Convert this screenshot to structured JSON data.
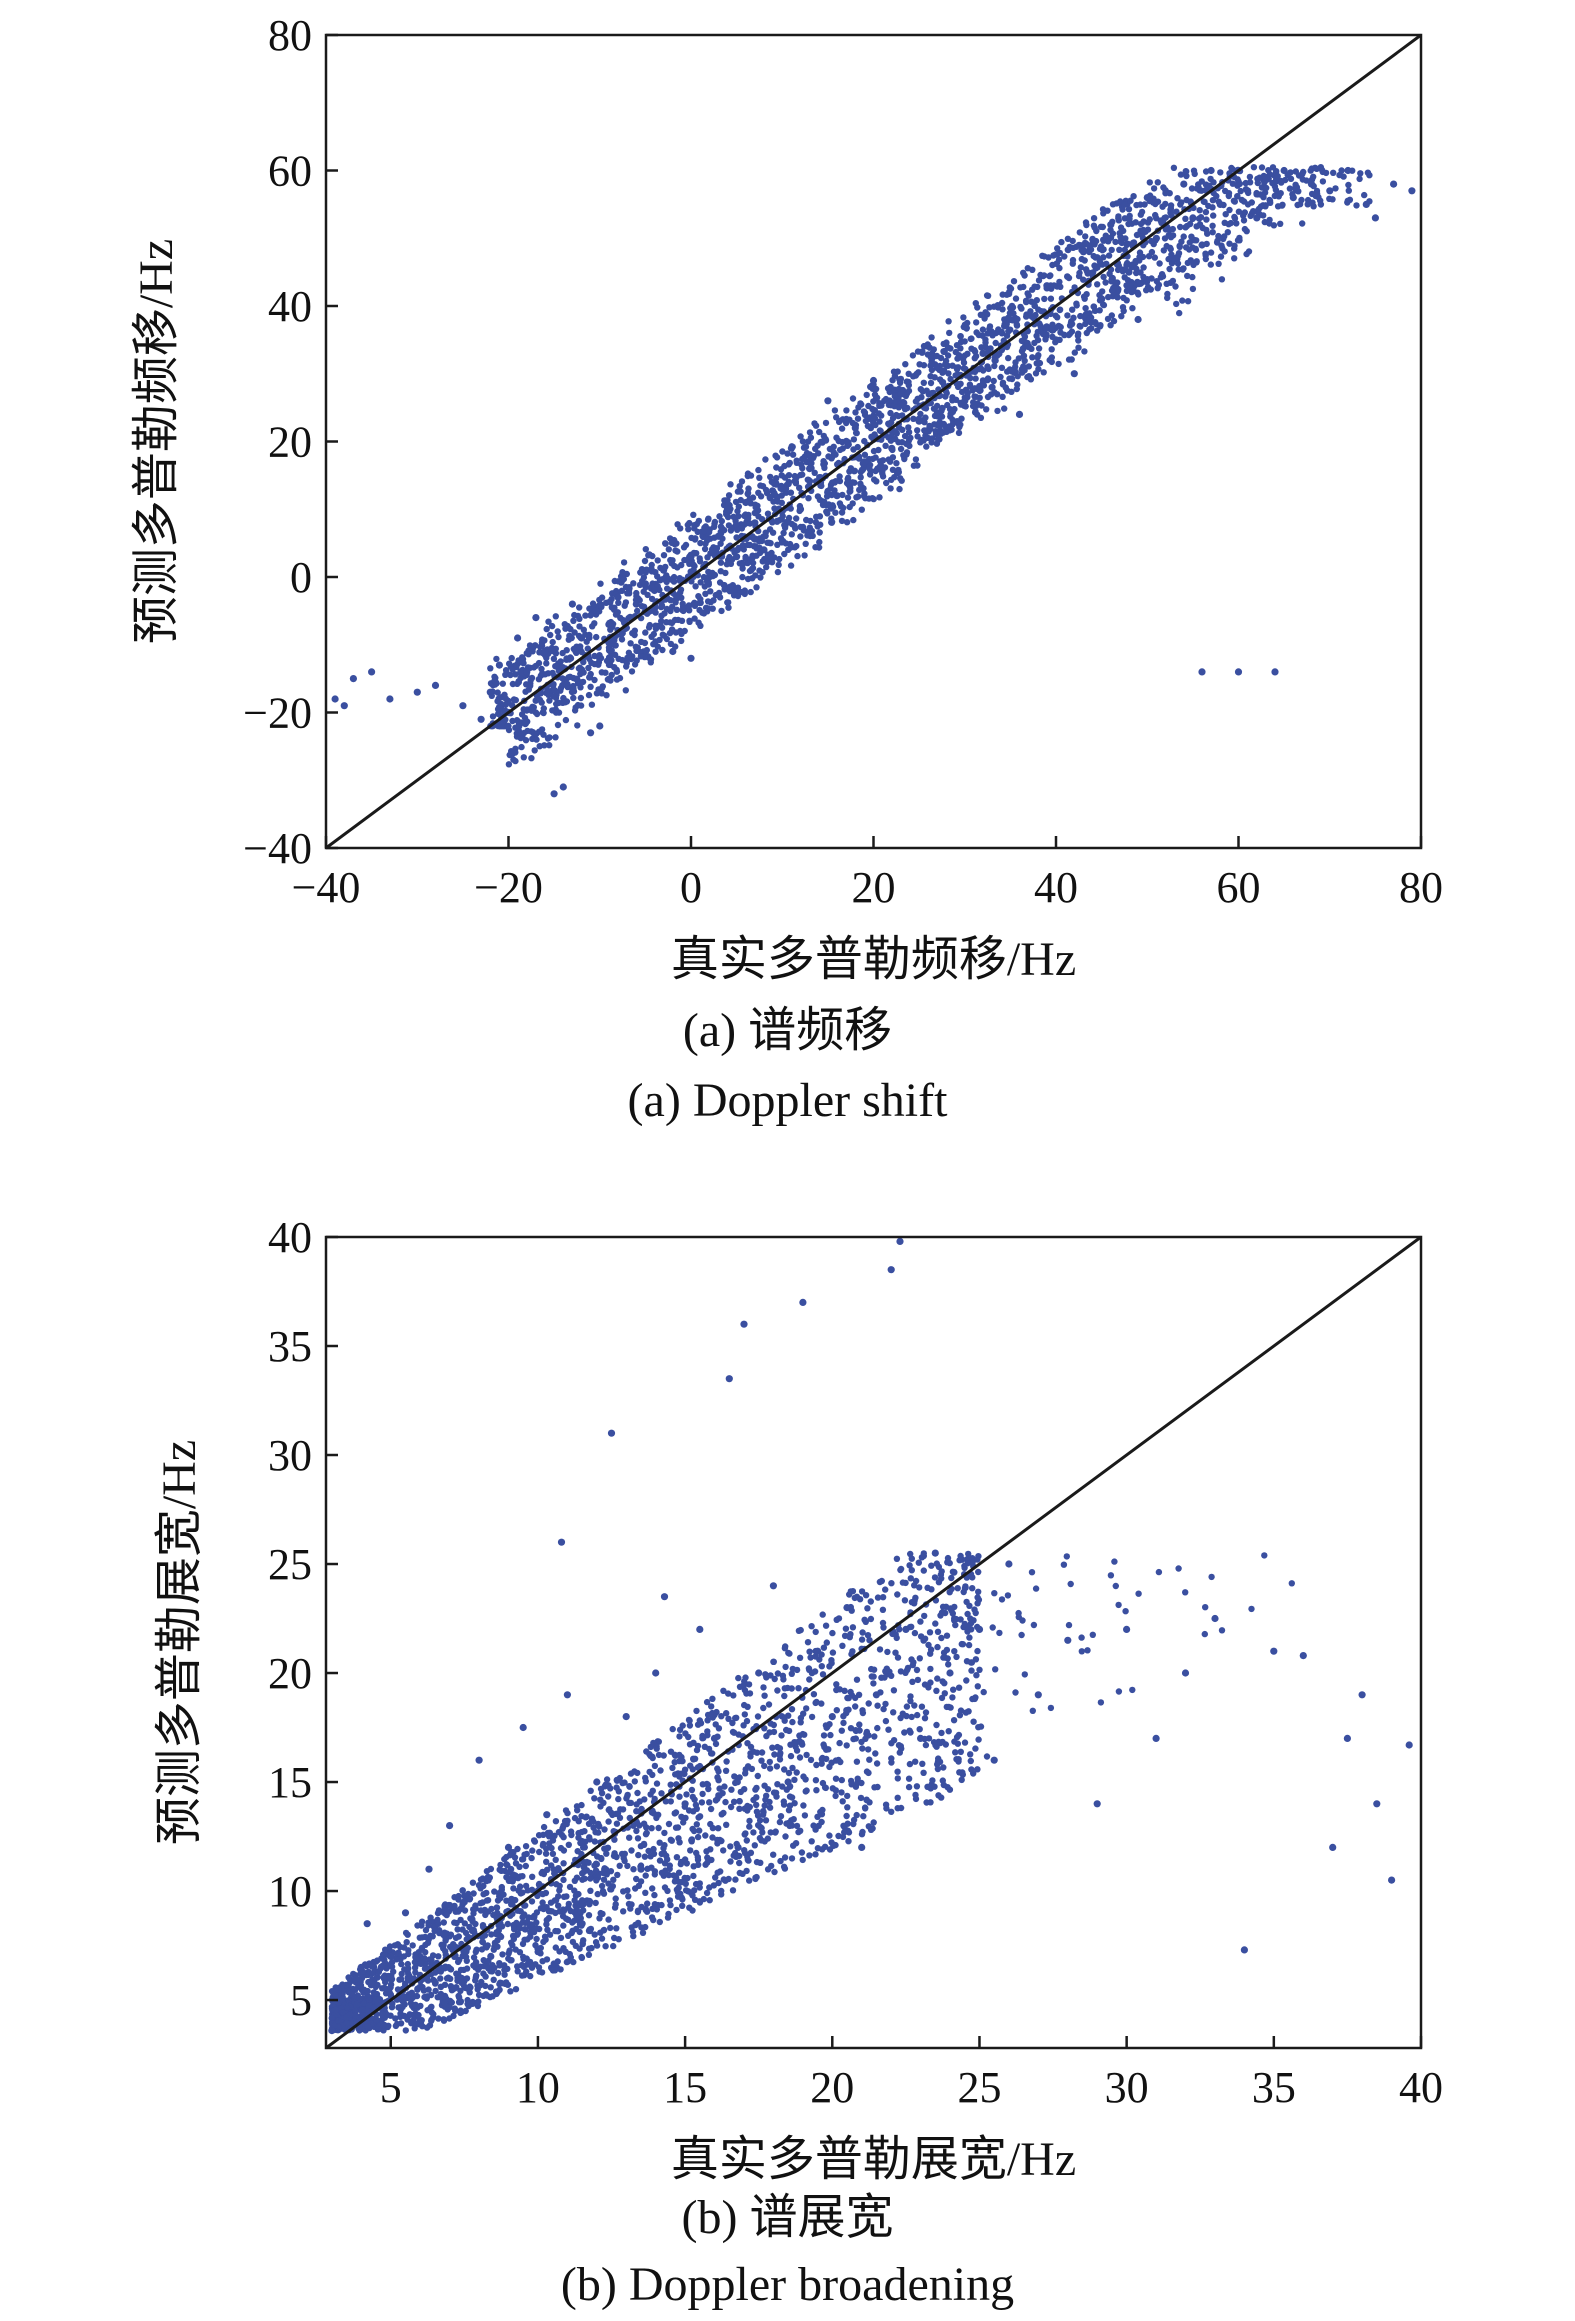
{
  "chart_data": [
    {
      "type": "scatter",
      "caption_cn": "(a) 谱频移",
      "caption_en": "(a) Doppler shift",
      "xlabel": "真实多普勒频移/Hz",
      "ylabel": "预测多普勒频移/Hz",
      "xlim": [
        -40,
        80
      ],
      "ylim": [
        -40,
        80
      ],
      "xticks": [
        "−40",
        "−20",
        "0",
        "20",
        "40",
        "60",
        "80"
      ],
      "yticks": [
        "−40",
        "−20",
        "0",
        "20",
        "40",
        "60",
        "80"
      ],
      "xtick_values": [
        -40,
        -20,
        0,
        20,
        40,
        60,
        80
      ],
      "ytick_values": [
        -40,
        -20,
        0,
        20,
        40,
        60,
        80
      ],
      "reference_line": {
        "from": [
          -40,
          -40
        ],
        "to": [
          80,
          80
        ],
        "color": "#1a1a1a"
      },
      "point_color": "#3a4fa0",
      "grid": false,
      "series": [
        {
          "points": [
            [
              -39,
              -18
            ],
            [
              -38,
              -19
            ],
            [
              -37,
              -15
            ],
            [
              -35,
              -14
            ],
            [
              -33,
              -18
            ],
            [
              -30,
              -17
            ],
            [
              -28,
              -16
            ],
            [
              -25,
              -19
            ],
            [
              -23,
              -21
            ],
            [
              -22,
              -17
            ],
            [
              -21,
              -13
            ],
            [
              -20,
              -20
            ],
            [
              -19,
              -9
            ],
            [
              -18,
              -14
            ],
            [
              -17,
              -6
            ],
            [
              -16,
              -11
            ],
            [
              -15,
              -32
            ],
            [
              -14,
              -31
            ],
            [
              -13,
              -4
            ],
            [
              -12,
              -9
            ],
            [
              -11,
              -23
            ],
            [
              -10,
              -22
            ],
            [
              -9,
              -7
            ],
            [
              -8,
              -3
            ],
            [
              -6,
              -4
            ],
            [
              -5,
              -1
            ],
            [
              -4,
              -2
            ],
            [
              -3,
              1
            ],
            [
              -2,
              -11
            ],
            [
              0,
              -12
            ],
            [
              0,
              3
            ],
            [
              2,
              0
            ],
            [
              3,
              6
            ],
            [
              4,
              10
            ],
            [
              5,
              3
            ],
            [
              6,
              11
            ],
            [
              7,
              8
            ],
            [
              8,
              4
            ],
            [
              10,
              13
            ],
            [
              11,
              19
            ],
            [
              12,
              10
            ],
            [
              13,
              16
            ],
            [
              15,
              26
            ],
            [
              16,
              12
            ],
            [
              18,
              22
            ],
            [
              19,
              17
            ],
            [
              20,
              29
            ],
            [
              22,
              19
            ],
            [
              23,
              27
            ],
            [
              25,
              23
            ],
            [
              27,
              31
            ],
            [
              28,
              22
            ],
            [
              30,
              26
            ],
            [
              32,
              33
            ],
            [
              33,
              28
            ],
            [
              35,
              38
            ],
            [
              36,
              24
            ],
            [
              37,
              34
            ],
            [
              39,
              43
            ],
            [
              40,
              35
            ],
            [
              42,
              30
            ],
            [
              43,
              48
            ],
            [
              45,
              41
            ],
            [
              46,
              52
            ],
            [
              48,
              45
            ],
            [
              49,
              38
            ],
            [
              50,
              56
            ],
            [
              51,
              50
            ],
            [
              53,
              47
            ],
            [
              54,
              58
            ],
            [
              55,
              53
            ],
            [
              56,
              49
            ],
            [
              57,
              60
            ],
            [
              58,
              55
            ],
            [
              60,
              60
            ],
            [
              61,
              57
            ],
            [
              62,
              53
            ],
            [
              63,
              59
            ],
            [
              65,
              60
            ],
            [
              66,
              56
            ],
            [
              68,
              58
            ],
            [
              70,
              57
            ],
            [
              72,
              60
            ],
            [
              74,
              55
            ],
            [
              75,
              53
            ],
            [
              77,
              58
            ],
            [
              79,
              57
            ],
            [
              56,
              -14
            ],
            [
              60,
              -14
            ],
            [
              64,
              -14
            ]
          ]
        }
      ]
    },
    {
      "type": "scatter",
      "caption_cn": "(b) 谱展宽",
      "caption_en": "(b) Doppler broadening",
      "xlabel": "真实多普勒展宽/Hz",
      "ylabel": "预测多普勒展宽/Hz",
      "xlim": [
        2.8,
        40
      ],
      "ylim": [
        2.8,
        40
      ],
      "xticks": [
        "5",
        "10",
        "15",
        "20",
        "25",
        "30",
        "35",
        "40"
      ],
      "yticks": [
        "5",
        "10",
        "15",
        "20",
        "25",
        "30",
        "35",
        "40"
      ],
      "xtick_values": [
        5,
        10,
        15,
        20,
        25,
        30,
        35,
        40
      ],
      "ytick_values": [
        5,
        10,
        15,
        20,
        25,
        30,
        35,
        40
      ],
      "reference_line": {
        "from": [
          2.8,
          2.8
        ],
        "to": [
          40,
          40
        ],
        "color": "#1a1a1a"
      },
      "point_color": "#3a4fa0",
      "grid": false,
      "series": [
        {
          "points": [
            [
              3,
              3.6
            ],
            [
              3.2,
              5.5
            ],
            [
              3.5,
              4.2
            ],
            [
              4,
              6.5
            ],
            [
              4.2,
              8.5
            ],
            [
              4.5,
              5
            ],
            [
              5,
              7
            ],
            [
              5.5,
              9
            ],
            [
              6,
              6
            ],
            [
              6.3,
              11
            ],
            [
              6.8,
              8
            ],
            [
              7,
              13
            ],
            [
              7.5,
              9.5
            ],
            [
              8,
              16
            ],
            [
              8.4,
              7
            ],
            [
              9,
              12
            ],
            [
              9.5,
              17.5
            ],
            [
              10,
              10
            ],
            [
              10.3,
              13.5
            ],
            [
              10.8,
              26
            ],
            [
              11,
              19
            ],
            [
              11.5,
              8.5
            ],
            [
              12,
              15
            ],
            [
              12.5,
              31
            ],
            [
              13,
              18
            ],
            [
              13.5,
              11
            ],
            [
              14,
              20
            ],
            [
              14.3,
              23.5
            ],
            [
              15,
              14
            ],
            [
              15.5,
              22
            ],
            [
              16,
              17
            ],
            [
              16.5,
              33.5
            ],
            [
              16.8,
              12
            ],
            [
              17,
              36
            ],
            [
              17.5,
              20
            ],
            [
              18,
              24
            ],
            [
              18.5,
              15
            ],
            [
              19,
              37
            ],
            [
              19.5,
              21
            ],
            [
              20,
              18
            ],
            [
              20.5,
              23
            ],
            [
              21,
              12
            ],
            [
              21.5,
              19
            ],
            [
              22,
              38.5
            ],
            [
              22.3,
              39.8
            ],
            [
              22.5,
              22
            ],
            [
              23,
              17
            ],
            [
              23.5,
              25.5
            ],
            [
              24,
              20
            ],
            [
              25,
              22
            ],
            [
              25.5,
              16
            ],
            [
              26,
              25
            ],
            [
              27,
              19
            ],
            [
              28,
              21.5
            ],
            [
              29,
              14
            ],
            [
              30,
              22
            ],
            [
              31,
              17
            ],
            [
              32,
              20
            ],
            [
              33,
              22.5
            ],
            [
              34,
              7.3
            ],
            [
              35,
              21
            ],
            [
              36,
              20.8
            ],
            [
              37,
              12
            ],
            [
              37.5,
              17
            ],
            [
              38,
              19
            ],
            [
              38.5,
              14
            ],
            [
              39,
              10.5
            ],
            [
              39.6,
              16.7
            ]
          ]
        }
      ]
    }
  ]
}
